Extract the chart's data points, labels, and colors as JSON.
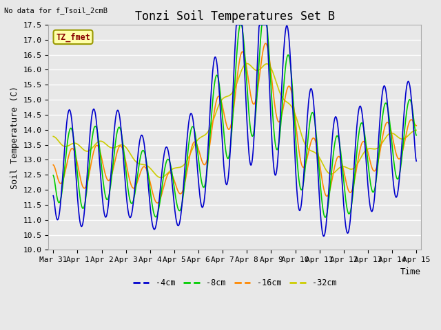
{
  "title": "Tonzi Soil Temperatures Set B",
  "subtitle": "No data for f_Tsoil_2cmB",
  "ylabel": "Soil Temperature (C)",
  "xlabel": "Time",
  "annotation": "TZ_fmet",
  "ylim": [
    10.0,
    17.5
  ],
  "yticks": [
    10.0,
    10.5,
    11.0,
    11.5,
    12.0,
    12.5,
    13.0,
    13.5,
    14.0,
    14.5,
    15.0,
    15.5,
    16.0,
    16.5,
    17.0,
    17.5
  ],
  "xtick_labels": [
    "Mar 31",
    "Apr 1",
    "Apr 2",
    "Apr 3",
    "Apr 4",
    "Apr 5",
    "Apr 6",
    "Apr 7",
    "Apr 8",
    "Apr 9",
    "Apr 10",
    "Apr 11",
    "Apr 12",
    "Apr 13",
    "Apr 14",
    "Apr 15"
  ],
  "legend_labels": [
    "-4cm",
    "-8cm",
    "-16cm",
    "-32cm"
  ],
  "line_colors": [
    "#0000cc",
    "#00cc00",
    "#ff8800",
    "#cccc00"
  ],
  "bg_color": "#e8e8e8",
  "grid_color": "#ffffff",
  "title_fontsize": 12,
  "label_fontsize": 9,
  "tick_fontsize": 8
}
